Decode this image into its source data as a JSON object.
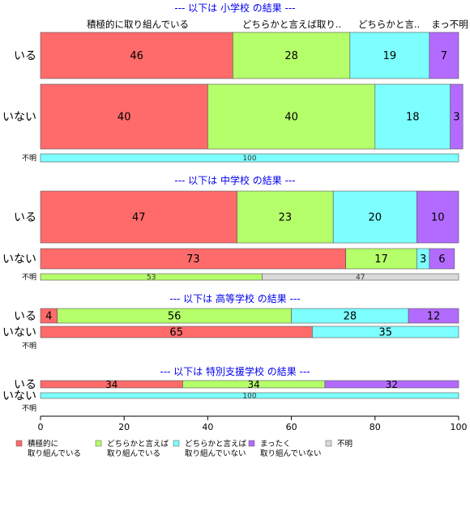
{
  "chart_data": {
    "type": "bar",
    "orientation": "horizontal",
    "stacked": true,
    "xlim": [
      0,
      100
    ],
    "x_ticks": [
      "0",
      "20",
      "40",
      "60",
      "80",
      "100"
    ],
    "grid": false,
    "legend_position": "bottom",
    "top_category_labels": [
      "積極的に取り組んでいる",
      "どちらかと言えば取り..",
      "どちらかと言..",
      "まっ不明"
    ],
    "series": [
      {
        "key": "s1",
        "legend": "積極的に\n取り組んでいる",
        "color": "#ff6b6b"
      },
      {
        "key": "s2",
        "legend": "どちらかと言えば\n取り組んでいる",
        "color": "#b5ff6b"
      },
      {
        "key": "s3",
        "legend": "どちらかと言えば\n取り組んでいない",
        "color": "#7dffff"
      },
      {
        "key": "s4",
        "legend": "まったく\n取り組んでいない",
        "color": "#b36bff"
      },
      {
        "key": "s5",
        "legend": "不明",
        "color": "#d9d9d9"
      }
    ],
    "groups": [
      {
        "title": "--- 以下は 小学校 の結果 ---",
        "rows": [
          {
            "label": "いる",
            "values": [
              46,
              28,
              19,
              7,
              0
            ]
          },
          {
            "label": "いない",
            "values": [
              40,
              40,
              18,
              3,
              0
            ]
          },
          {
            "label": "不明",
            "values": [
              0,
              0,
              100,
              0,
              0
            ]
          }
        ]
      },
      {
        "title": "--- 以下は 中学校 の結果 ---",
        "rows": [
          {
            "label": "いる",
            "values": [
              47,
              23,
              20,
              10,
              0
            ]
          },
          {
            "label": "いない",
            "values": [
              73,
              17,
              3,
              6,
              0
            ]
          },
          {
            "label": "不明",
            "values": [
              0,
              53,
              0,
              0,
              47
            ]
          }
        ]
      },
      {
        "title": "--- 以下は 高等学校 の結果 ---",
        "rows": [
          {
            "label": "いる",
            "values": [
              4,
              56,
              28,
              12,
              0
            ]
          },
          {
            "label": "いない",
            "values": [
              65,
              0,
              35,
              0,
              0
            ]
          },
          {
            "label": "不明",
            "values": [
              0,
              0,
              0,
              0,
              0
            ]
          }
        ]
      },
      {
        "title": "--- 以下は 特別支援学校 の結果 ---",
        "rows": [
          {
            "label": "いる",
            "values": [
              34,
              34,
              0,
              32,
              0
            ]
          },
          {
            "label": "いない",
            "values": [
              0,
              0,
              100,
              0,
              0
            ]
          },
          {
            "label": "不明",
            "values": [
              0,
              0,
              0,
              0,
              0
            ]
          }
        ]
      }
    ]
  }
}
